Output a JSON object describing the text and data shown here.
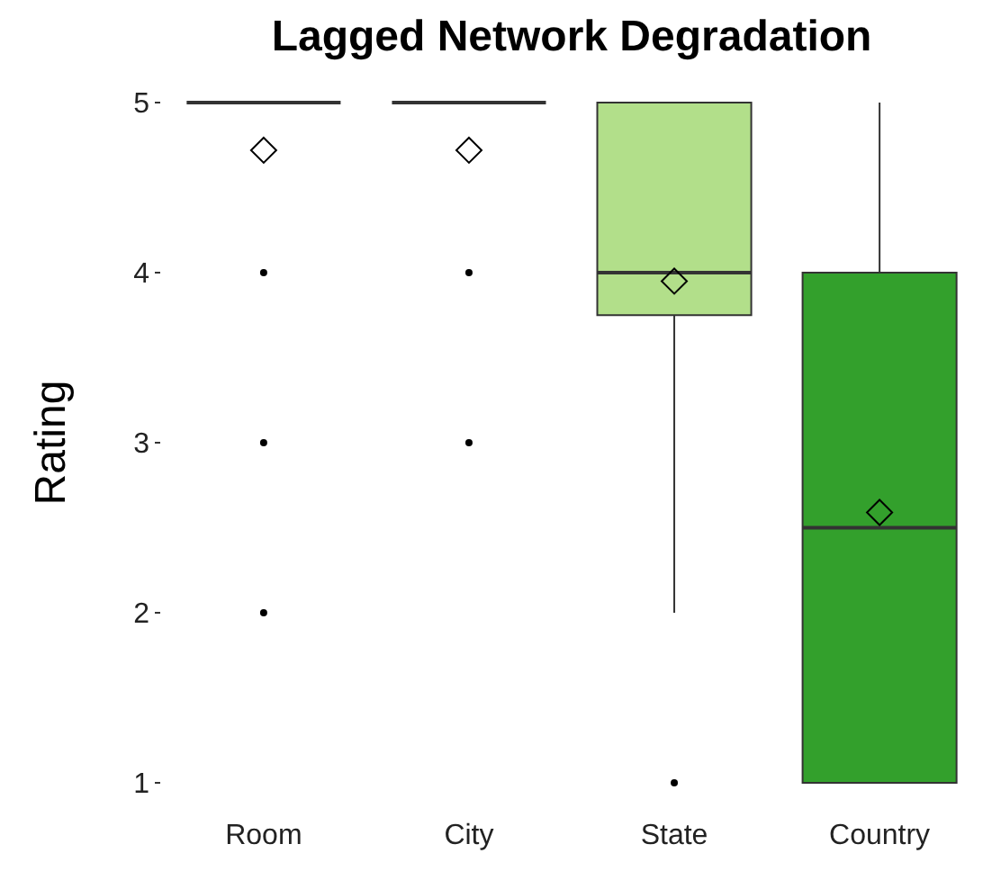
{
  "chart_data": {
    "type": "box",
    "title": "Lagged Network Degradation",
    "ylabel": "Rating",
    "categories": [
      "Room",
      "City",
      "State",
      "Country"
    ],
    "boxes": [
      {
        "low": 5,
        "q1": 5,
        "median": 5,
        "q3": 5,
        "high": 5,
        "mean": 4.72,
        "outliers": [
          4,
          3,
          2
        ]
      },
      {
        "low": 5,
        "q1": 5,
        "median": 5,
        "q3": 5,
        "high": 5,
        "mean": 4.72,
        "outliers": [
          4,
          3
        ]
      },
      {
        "low": 2,
        "q1": 3.75,
        "median": 4,
        "q3": 5,
        "high": 5,
        "mean": 3.95,
        "outliers": [
          1
        ]
      },
      {
        "low": 1,
        "q1": 1,
        "median": 2.5,
        "q3": 4,
        "high": 5,
        "mean": 2.59
      }
    ],
    "colors": [
      "#333333",
      "#333333",
      "#b2df8a",
      "#33a02c"
    ],
    "ylim": [
      1,
      5
    ],
    "yticks": [
      1,
      2,
      3,
      4,
      5
    ],
    "grid": false
  }
}
